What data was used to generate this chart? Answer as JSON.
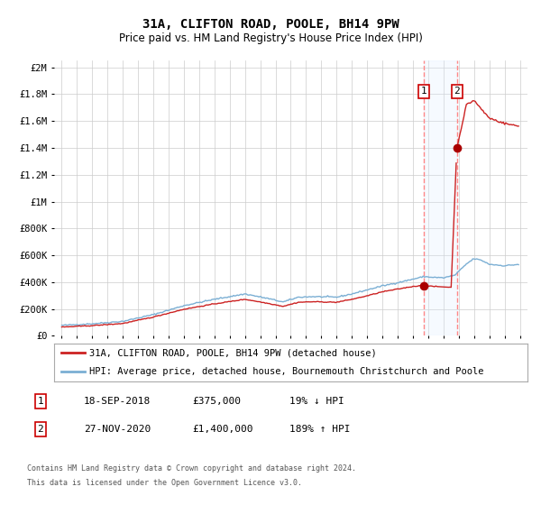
{
  "title": "31A, CLIFTON ROAD, POOLE, BH14 9PW",
  "subtitle": "Price paid vs. HM Land Registry's House Price Index (HPI)",
  "legend_line1": "31A, CLIFTON ROAD, POOLE, BH14 9PW (detached house)",
  "legend_line2": "HPI: Average price, detached house, Bournemouth Christchurch and Poole",
  "transaction1_date": "18-SEP-2018",
  "transaction1_price": "£375,000",
  "transaction1_pct": "19% ↓ HPI",
  "transaction2_date": "27-NOV-2020",
  "transaction2_price": "£1,400,000",
  "transaction2_pct": "189% ↑ HPI",
  "footnote1": "Contains HM Land Registry data © Crown copyright and database right 2024.",
  "footnote2": "This data is licensed under the Open Government Licence v3.0.",
  "hpi_color": "#7bafd4",
  "price_color": "#cc2222",
  "marker_color": "#aa0000",
  "vline_color": "#ff8888",
  "shade_color": "#ddeeff",
  "grid_color": "#cccccc",
  "bg_color": "#ffffff",
  "t1_year": 2018.708,
  "t2_year": 2020.875,
  "hpi_anchors_t": [
    1995.0,
    1997.0,
    1999.0,
    2001.0,
    2003.0,
    2005.0,
    2007.0,
    2008.5,
    2009.5,
    2010.5,
    2011.5,
    2013.0,
    2014.0,
    2015.0,
    2016.0,
    2017.0,
    2018.0,
    2018.75,
    2019.0,
    2020.0,
    2020.75,
    2021.5,
    2022.0,
    2022.5,
    2023.0,
    2024.0,
    2024.9
  ],
  "hpi_anchors_v": [
    78000,
    90000,
    108000,
    158000,
    225000,
    272000,
    312000,
    278000,
    252000,
    288000,
    292000,
    288000,
    312000,
    342000,
    372000,
    396000,
    422000,
    442000,
    438000,
    432000,
    452000,
    535000,
    575000,
    562000,
    533000,
    522000,
    532000
  ],
  "price_anchors_t": [
    1995.0,
    1997.0,
    1999.0,
    2001.0,
    2003.0,
    2005.0,
    2007.0,
    2008.5,
    2009.5,
    2010.5,
    2011.5,
    2013.0,
    2014.0,
    2015.0,
    2016.0,
    2017.0,
    2018.0,
    2018.708,
    2019.0,
    2020.5,
    2020.875,
    2021.5,
    2022.0,
    2022.5,
    2023.0,
    2024.0,
    2024.9
  ],
  "price_anchors_v": [
    65000,
    76000,
    92000,
    140000,
    198000,
    238000,
    272000,
    242000,
    220000,
    250000,
    254000,
    250000,
    272000,
    298000,
    328000,
    348000,
    368000,
    375000,
    370000,
    362000,
    1400000,
    1720000,
    1755000,
    1685000,
    1622000,
    1582000,
    1562000
  ]
}
